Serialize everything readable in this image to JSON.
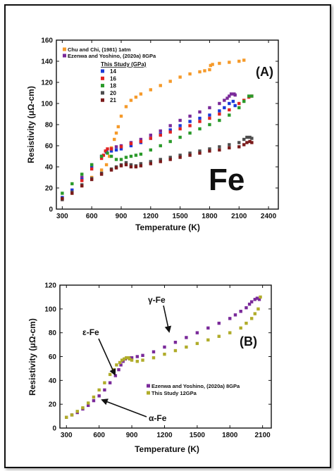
{
  "figure": "Resistivity vs temperature of Fe",
  "chart_data": [
    {
      "type": "scatter",
      "panel_label": "(A)",
      "big_label": "Fe",
      "xlabel": "Temperature (K)",
      "ylabel": "Resistivity (μΩ-cm)",
      "xlim": [
        240,
        2500
      ],
      "ylim": [
        0,
        160
      ],
      "xticks": [
        300,
        600,
        900,
        1200,
        1500,
        1800,
        2100,
        2400
      ],
      "yticks": [
        0,
        20,
        40,
        60,
        80,
        100,
        120,
        140,
        160
      ],
      "grid": false,
      "legend_position": "top-left",
      "legend_subheading": "This Study (GPa)",
      "series": [
        {
          "name": "Chu and Chi, (1981) 1atm",
          "color": "#f59a2a",
          "x": [
            300,
            400,
            500,
            600,
            700,
            750,
            780,
            800,
            830,
            850,
            870,
            900,
            950,
            1000,
            1050,
            1100,
            1200,
            1300,
            1400,
            1500,
            1600,
            1700,
            1750,
            1800,
            1810,
            1830,
            1900,
            2000,
            2100,
            2150
          ],
          "y": [
            10,
            15,
            22,
            30,
            37,
            42,
            50,
            58,
            66,
            72,
            78,
            88,
            97,
            103,
            106,
            109,
            113,
            117,
            121,
            125,
            128,
            130,
            131,
            132,
            136,
            137,
            138,
            139,
            140,
            141
          ]
        },
        {
          "name": "Ezenwa and Yoshino, (2020a) 8GPa",
          "color": "#7a2a9a",
          "x": [
            300,
            400,
            500,
            600,
            700,
            750,
            800,
            850,
            900,
            1000,
            1100,
            1200,
            1300,
            1400,
            1500,
            1600,
            1700,
            1800,
            1900,
            1950,
            1980,
            2000,
            2020,
            2050,
            2060
          ],
          "y": [
            10,
            18,
            30,
            42,
            50,
            55,
            57,
            59,
            60,
            63,
            66,
            70,
            74,
            79,
            84,
            88,
            92,
            96,
            100,
            103,
            105,
            107,
            109,
            109,
            108
          ]
        },
        {
          "name": "14",
          "color": "#1a39d8",
          "x": [
            300,
            400,
            500,
            600,
            700,
            750,
            800,
            850,
            900,
            1000,
            1100,
            1200,
            1300,
            1400,
            1500,
            1600,
            1700,
            1800,
            1900,
            1950,
            2000,
            2040,
            2060
          ],
          "y": [
            11,
            18,
            28,
            40,
            50,
            54,
            55,
            56,
            57,
            60,
            63,
            67,
            71,
            75,
            79,
            83,
            86,
            89,
            93,
            96,
            100,
            102,
            98
          ]
        },
        {
          "name": "16",
          "color": "#e02222",
          "x": [
            300,
            400,
            500,
            600,
            700,
            720,
            740,
            760,
            800,
            900,
            1000,
            1100,
            1200,
            1300,
            1400,
            1500,
            1600,
            1700,
            1800,
            1900,
            2000,
            2100,
            2150,
            2200,
            2230
          ],
          "y": [
            9,
            16,
            27,
            38,
            48,
            51,
            55,
            57,
            57,
            59,
            62,
            64,
            67,
            70,
            73,
            76,
            79,
            83,
            86,
            90,
            94,
            100,
            103,
            106,
            107
          ]
        },
        {
          "name": "18",
          "color": "#2a9a2a",
          "x": [
            300,
            400,
            500,
            600,
            700,
            760,
            800,
            850,
            900,
            950,
            1000,
            1050,
            1100,
            1200,
            1300,
            1400,
            1500,
            1600,
            1700,
            1800,
            1900,
            2000,
            2100,
            2150,
            2200,
            2230
          ],
          "y": [
            15,
            24,
            33,
            42,
            50,
            53,
            50,
            47,
            47,
            49,
            50,
            51,
            52,
            56,
            60,
            64,
            68,
            72,
            76,
            80,
            84,
            89,
            96,
            102,
            107,
            107
          ]
        },
        {
          "name": "20",
          "color": "#4d4d4d",
          "x": [
            300,
            400,
            500,
            600,
            700,
            800,
            850,
            900,
            950,
            1000,
            1050,
            1100,
            1200,
            1300,
            1400,
            1500,
            1600,
            1700,
            1800,
            1900,
            2000,
            2100,
            2150,
            2180,
            2210,
            2230
          ],
          "y": [
            9,
            16,
            23,
            29,
            34,
            38,
            40,
            42,
            44,
            42,
            41,
            43,
            45,
            47,
            49,
            51,
            53,
            55,
            57,
            59,
            61,
            63,
            66,
            68,
            68,
            67
          ]
        },
        {
          "name": "21",
          "color": "#7a1a1a",
          "x": [
            300,
            400,
            500,
            600,
            700,
            800,
            850,
            900,
            950,
            1000,
            1050,
            1100,
            1200,
            1300,
            1400,
            1500,
            1600,
            1700,
            1800,
            1900,
            2000,
            2100,
            2150,
            2180,
            2210,
            2230
          ],
          "y": [
            10,
            15,
            22,
            28,
            33,
            37,
            39,
            41,
            42,
            40,
            40,
            41,
            43,
            45,
            47,
            49,
            51,
            53,
            55,
            56,
            58,
            59,
            61,
            63,
            64,
            63
          ]
        }
      ]
    },
    {
      "type": "scatter",
      "panel_label": "(B)",
      "xlabel": "Temperature (K)",
      "ylabel": "Resistivity (μΩ-cm)",
      "xlim": [
        240,
        2180
      ],
      "ylim": [
        0,
        120
      ],
      "xticks": [
        300,
        600,
        900,
        1200,
        1500,
        1800,
        2100
      ],
      "yticks": [
        0,
        20,
        40,
        60,
        80,
        100,
        120
      ],
      "grid": false,
      "legend_position": "bottom-right",
      "annotations": [
        {
          "text": "γ-Fe",
          "x": 1300,
          "y": 82
        },
        {
          "text": "ε-Fe",
          "x": 770,
          "y": 49
        },
        {
          "text": "α-Fe",
          "x": 650,
          "y": 29
        }
      ],
      "series": [
        {
          "name": "Ezenwa and Yoshino, (2020a) 8GPa",
          "color": "#7a2a9a",
          "x": [
            300,
            350,
            400,
            450,
            500,
            550,
            600,
            650,
            700,
            750,
            780,
            800,
            820,
            840,
            860,
            880,
            900,
            950,
            1000,
            1100,
            1200,
            1300,
            1400,
            1500,
            1600,
            1700,
            1800,
            1850,
            1900,
            1950,
            1980,
            2000,
            2030,
            2050,
            2070
          ],
          "y": [
            9,
            11,
            13,
            16,
            19,
            23,
            27,
            32,
            38,
            44,
            49,
            53,
            56,
            58,
            59,
            59,
            59,
            60,
            61,
            64,
            68,
            72,
            76,
            80,
            84,
            88,
            92,
            95,
            98,
            101,
            104,
            106,
            108,
            109,
            108
          ]
        },
        {
          "name": "This Study 12GPa",
          "color": "#b0ac2a",
          "x": [
            300,
            350,
            400,
            450,
            500,
            550,
            600,
            650,
            700,
            730,
            760,
            790,
            810,
            830,
            850,
            870,
            880,
            900,
            950,
            1000,
            1100,
            1200,
            1300,
            1400,
            1500,
            1600,
            1700,
            1800,
            1900,
            1950,
            2000,
            2030,
            2060,
            2080
          ],
          "y": [
            9,
            11,
            14,
            17,
            21,
            26,
            32,
            38,
            45,
            49,
            53,
            55,
            57,
            58,
            59,
            59,
            58,
            57,
            56,
            57,
            59,
            62,
            65,
            68,
            71,
            74,
            77,
            80,
            84,
            88,
            92,
            96,
            100,
            110
          ]
        }
      ]
    }
  ]
}
